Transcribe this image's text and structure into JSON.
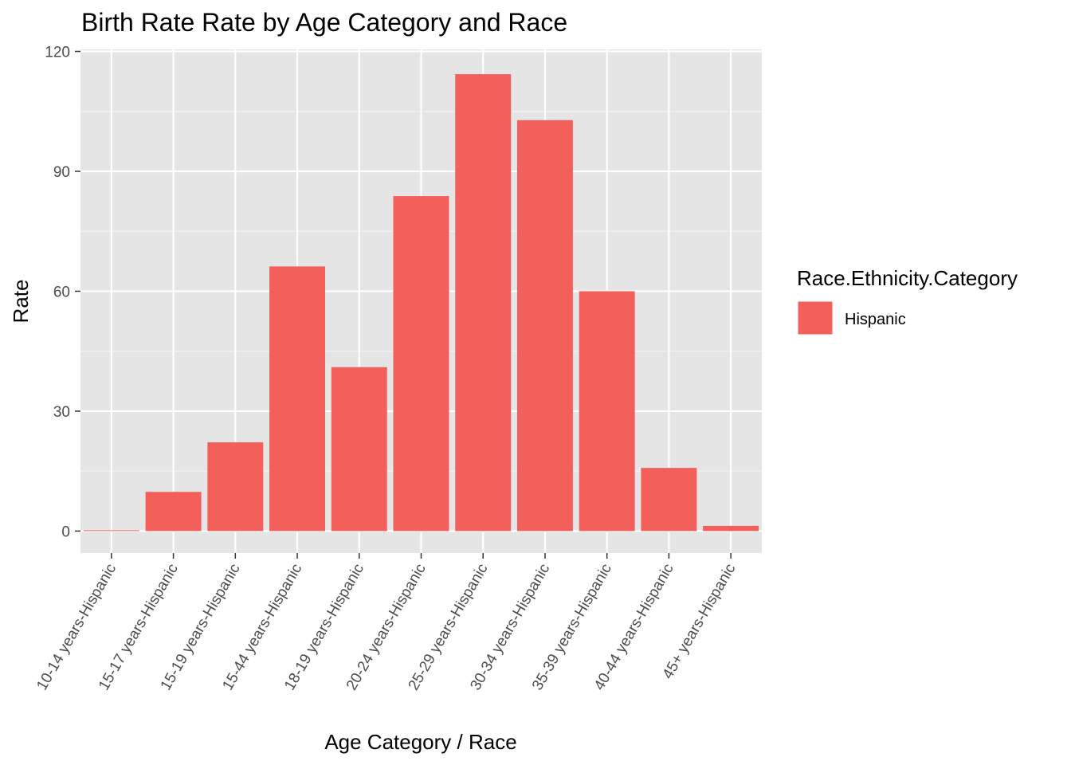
{
  "chart_data": {
    "type": "bar",
    "title": "Birth Rate Rate by Age Category and Race",
    "xlabel": "Age Category / Race",
    "ylabel": "Rate",
    "ylim": [
      -5.5,
      120.5
    ],
    "yticks": [
      0,
      30,
      60,
      90,
      120
    ],
    "grid": true,
    "categories": [
      "10-14 years-Hispanic",
      "15-17 years-Hispanic",
      "15-19 years-Hispanic",
      "15-44 years-Hispanic",
      "18-19 years-Hispanic",
      "20-24 years-Hispanic",
      "25-29 years-Hispanic",
      "30-34 years-Hispanic",
      "35-39 years-Hispanic",
      "40-44 years-Hispanic",
      "45+ years-Hispanic"
    ],
    "series": [
      {
        "name": "Hispanic",
        "color": "#f3605b",
        "values": [
          0.2,
          9.8,
          22.2,
          66.2,
          41.0,
          83.8,
          114.3,
          102.8,
          60.0,
          15.8,
          1.3
        ]
      }
    ],
    "legend": {
      "title": "Race.Ethnicity.Category",
      "position": "right",
      "entries": [
        "Hispanic"
      ]
    }
  },
  "colors": {
    "panel": "#e5e5e5",
    "grid_major": "#ffffff",
    "grid_minor": "#f2f2f2",
    "tick": "#333333"
  }
}
